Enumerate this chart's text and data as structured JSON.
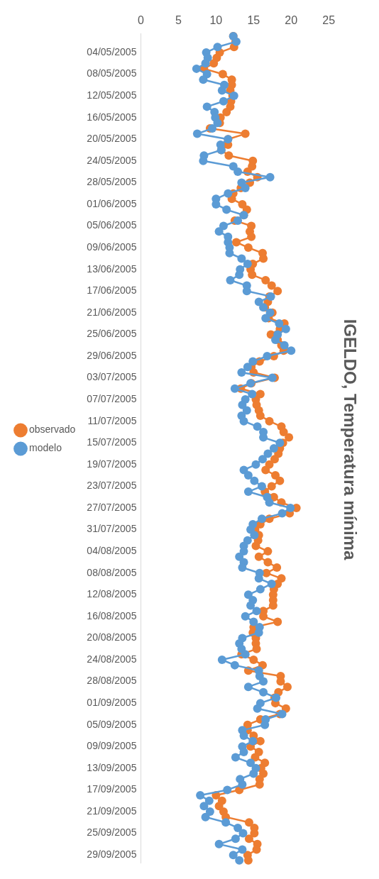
{
  "chart_data": {
    "type": "line",
    "title": "IGELDO, Temperatura mínima",
    "categories": [
      null,
      null,
      null,
      "04/05/2005",
      null,
      null,
      null,
      "08/05/2005",
      null,
      null,
      null,
      "12/05/2005",
      null,
      null,
      null,
      "16/05/2005",
      null,
      null,
      null,
      "20/05/2005",
      null,
      null,
      null,
      "24/05/2005",
      null,
      null,
      null,
      "28/05/2005",
      null,
      null,
      null,
      "01/06/2005",
      null,
      null,
      null,
      "05/06/2005",
      null,
      null,
      null,
      "09/06/2005",
      null,
      null,
      null,
      "13/06/2005",
      null,
      null,
      null,
      "17/06/2005",
      null,
      null,
      null,
      "21/06/2005",
      null,
      null,
      null,
      "25/06/2005",
      null,
      null,
      null,
      "29/06/2005",
      null,
      null,
      null,
      "03/07/2005",
      null,
      null,
      null,
      "07/07/2005",
      null,
      null,
      null,
      "11/07/2005",
      null,
      null,
      null,
      "15/07/2005",
      null,
      null,
      null,
      "19/07/2005",
      null,
      null,
      null,
      "23/07/2005",
      null,
      null,
      null,
      "27/07/2005",
      null,
      null,
      null,
      "31/07/2005",
      null,
      null,
      null,
      "04/08/2005",
      null,
      null,
      null,
      "08/08/2005",
      null,
      null,
      null,
      "12/08/2005",
      null,
      null,
      null,
      "16/08/2005",
      null,
      null,
      null,
      "20/08/2005",
      null,
      null,
      null,
      "24/08/2005",
      null,
      null,
      null,
      "28/08/2005",
      null,
      null,
      null,
      "01/09/2005",
      null,
      null,
      null,
      "05/09/2005",
      null,
      null,
      null,
      "09/09/2005",
      null,
      null,
      null,
      "13/09/2005",
      null,
      null,
      null,
      "17/09/2005",
      null,
      null,
      null,
      "21/09/2005",
      null,
      null,
      null,
      "25/09/2005",
      null,
      null,
      null,
      "29/09/2005",
      null
    ],
    "series": [
      {
        "name": "observado",
        "color": "#ed7d31",
        "values": [
          12.3,
          12.6,
          12.4,
          10.5,
          10.1,
          9.7,
          8.4,
          10.9,
          12.1,
          12.1,
          11.9,
          12.2,
          12.0,
          11.9,
          11.4,
          10.6,
          10.5,
          9.2,
          13.9,
          11.6,
          11.6,
          10.7,
          11.7,
          14.9,
          14.8,
          14.2,
          15.5,
          14.5,
          13.3,
          12.3,
          12.1,
          13.5,
          14.1,
          13.7,
          12.5,
          14.7,
          14.5,
          14.7,
          12.7,
          14.3,
          16.2,
          16.3,
          14.9,
          14.6,
          14.8,
          16.6,
          17.4,
          18.2,
          17.1,
          16.9,
          16.5,
          17.5,
          17.0,
          19.1,
          18.5,
          17.3,
          18.2,
          18.7,
          19.0,
          17.7,
          15.8,
          14.7,
          15.0,
          17.8,
          14.7,
          13.3,
          15.9,
          15.3,
          15.4,
          15.7,
          15.9,
          17.1,
          18.7,
          19.0,
          19.7,
          18.9,
          18.5,
          18.3,
          17.8,
          17.1,
          16.6,
          17.9,
          18.5,
          17.4,
          16.5,
          17.7,
          18.7,
          20.7,
          19.8,
          17.1,
          15.9,
          15.2,
          15.7,
          15.6,
          15.3,
          16.9,
          15.7,
          16.9,
          18.1,
          16.7,
          18.7,
          18.2,
          17.7,
          17.6,
          17.6,
          17.6,
          16.3,
          16.3,
          18.2,
          15.0,
          14.9,
          15.3,
          15.3,
          15.4,
          13.4,
          15.0,
          16.2,
          14.3,
          18.6,
          18.6,
          19.5,
          18.3,
          17.8,
          17.9,
          19.3,
          18.5,
          15.9,
          14.2,
          14.2,
          15.0,
          15.9,
          14.6,
          15.7,
          15.2,
          16.5,
          16.0,
          16.3,
          15.8,
          15.8,
          13.1,
          10.0,
          10.8,
          10.4,
          11.0,
          11.3,
          14.4,
          15.1,
          15.1,
          14.4,
          15.5,
          15.4,
          14.2,
          14.3
        ]
      },
      {
        "name": "modelo",
        "color": "#5b9bd5",
        "values": [
          12.3,
          12.7,
          10.2,
          8.7,
          8.9,
          8.6,
          7.4,
          8.8,
          8.3,
          11.1,
          10.8,
          12.4,
          11.0,
          8.8,
          9.8,
          9.9,
          10.2,
          9.5,
          7.5,
          11.6,
          10.6,
          10.7,
          8.4,
          8.3,
          12.3,
          12.9,
          17.2,
          13.4,
          13.9,
          11.6,
          10.0,
          10.0,
          11.4,
          13.7,
          12.9,
          11.0,
          10.4,
          11.6,
          11.6,
          11.8,
          11.8,
          13.4,
          14.2,
          13.2,
          13.1,
          11.9,
          14.1,
          14.1,
          17.3,
          15.7,
          16.3,
          17.2,
          16.6,
          18.4,
          19.3,
          18.2,
          17.9,
          19.1,
          20.0,
          16.8,
          14.9,
          14.2,
          13.4,
          17.5,
          14.6,
          12.5,
          14.8,
          13.9,
          13.5,
          14.1,
          13.4,
          13.7,
          15.5,
          16.3,
          16.3,
          18.5,
          17.7,
          16.9,
          16.2,
          15.3,
          13.7,
          14.3,
          15.1,
          16.1,
          14.3,
          16.8,
          17.1,
          19.9,
          18.8,
          16.1,
          14.9,
          14.6,
          15.1,
          14.2,
          13.7,
          13.7,
          13.1,
          13.7,
          13.5,
          15.8,
          15.7,
          17.4,
          15.9,
          14.3,
          14.9,
          14.6,
          15.4,
          13.9,
          15.0,
          15.8,
          15.7,
          13.5,
          13.1,
          13.4,
          13.9,
          10.8,
          12.5,
          15.7,
          15.8,
          16.3,
          14.3,
          16.3,
          18.0,
          15.9,
          15.5,
          18.8,
          16.6,
          16.5,
          13.5,
          13.7,
          14.9,
          13.5,
          13.7,
          12.6,
          14.6,
          15.3,
          15.0,
          13.2,
          13.5,
          11.5,
          7.9,
          9.1,
          8.4,
          9.2,
          8.6,
          11.3,
          12.9,
          13.6,
          12.6,
          10.4,
          13.5,
          12.3,
          13.1
        ]
      }
    ],
    "orientation": "horizontal",
    "xlim": [
      0,
      25
    ],
    "xticks": [
      0,
      5,
      10,
      15,
      20,
      25
    ],
    "grid": false,
    "legend": "left",
    "marker": "circle",
    "line_style": "solid"
  }
}
